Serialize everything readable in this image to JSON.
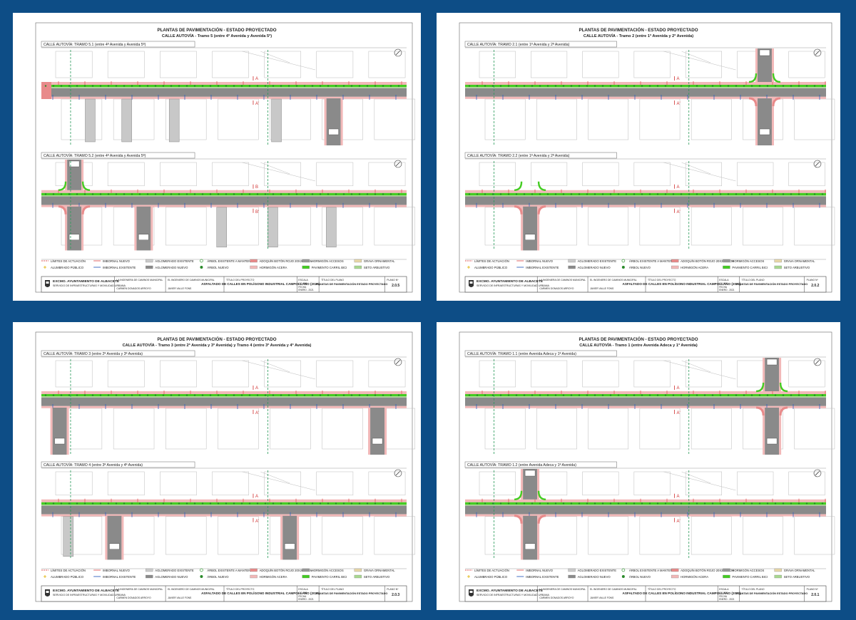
{
  "sheets": [
    {
      "title": "PLANTAS DE PAVIMENTACIÓN - ESTADO PROYECTADO",
      "subtitle": "CALLE AUTOVÍA - Tramo 5 (entre 4ª Avenida y Avenida 5ª)",
      "views": [
        {
          "label": "CALLE AUTOVÍA: TRAMO 5.1 (entre 4ª Avenida y Avenida 5ª)",
          "section": "A"
        },
        {
          "label": "CALLE AUTOVÍA: TRAMO 5.2 (entre 4ª Avenida y Avenida 5ª)",
          "section": "B"
        }
      ],
      "plan_title": "PLANTAS DE PAVIMENTACIÓN ESTADO PROYECTADO",
      "scale": "1/1.000",
      "plan_no": "2.0.5"
    },
    {
      "title": "PLANTAS DE PAVIMENTACIÓN - ESTADO PROYECTADO",
      "subtitle": "CALLE AUTOVÍA - Tramo 2 (entre 1ª Avenida y 2ª Avenida)",
      "views": [
        {
          "label": "CALLE AUTOVÍA: TRAMO 2.1 (entre 1ª Avenida y 2ª Avenida)",
          "section": "A"
        },
        {
          "label": "CALLE AUTOVÍA: TRAMO 2.2 (entre 1ª Avenida y 2ª Avenida)",
          "section": "A"
        }
      ],
      "plan_title": "PLANTAS DE PAVIMENTACIÓN ESTADO PROYECTADO",
      "scale": "1/1.000",
      "plan_no": "2.0.2"
    },
    {
      "title": "PLANTAS DE PAVIMENTACIÓN - ESTADO PROYECTADO",
      "subtitle": "CALLE AUTOVÍA - Tramo 3 (entre 2ª Avenida y 3ª Avenida) y Tramo 4 (entre 3ª Avenida y 4ª Avenida)",
      "views": [
        {
          "label": "CALLE AUTOVÍA: TRAMO 3 (entre 2ª Avenida y 3ª Avenida)",
          "section": "A"
        },
        {
          "label": "CALLE AUTOVÍA: TRAMO 4 (entre 3ª Avenida y 4ª Avenida)",
          "section": "A"
        }
      ],
      "plan_title": "PLANTAS DE PAVIMENTACIÓN ESTADO PROYECTADO",
      "scale": "1/1.000",
      "plan_no": "2.0.3"
    },
    {
      "title": "PLANTAS DE PAVIMENTACIÓN - ESTADO PROYECTADO",
      "subtitle": "CALLE AUTOVÍA - Tramo 1 (entre Avenida Adeca y 1ª Avenida)",
      "views": [
        {
          "label": "CALLE AUTOVÍA: TRAMO 1.1 (entre Avenida Adeca y 1ª Avenida)",
          "section": "A"
        },
        {
          "label": "CALLE AUTOVÍA: TRAMO 1.2 (entre Avenida Adeca y 1ª Avenida)",
          "section": "A"
        }
      ],
      "plan_title": "PLANTAS DE PAVIMENTACIÓN ESTADO PROYECTADO",
      "scale": "1/1.000",
      "plan_no": "2.0.1"
    }
  ],
  "legend": [
    {
      "label": "LÍMITES DE ACTUACIÓN",
      "color": "#e05a5a",
      "kind": "dash"
    },
    {
      "label": "IMBORNAL NUEVO",
      "color": "#e05a5a",
      "kind": "line"
    },
    {
      "label": "AGLOMERADO EXISTENTE",
      "color": "#cccccc",
      "kind": "box"
    },
    {
      "label": "ÁRBOL EXISTENTE A MANTENER",
      "color": "#3a9a3a",
      "kind": "ring"
    },
    {
      "label": "ADOQUÍN BOTÓN ROJO 20X20X6 CM",
      "color": "#e88a8a",
      "kind": "box"
    },
    {
      "label": "HORMIGÓN ACCESOS",
      "color": "#9a9a9a",
      "kind": "box"
    },
    {
      "label": "GRAVA ORNAMENTAL",
      "color": "#e8d8a8",
      "kind": "box"
    },
    {
      "label": "ALUMBRADO PÚBLICO",
      "color": "#e0b000",
      "kind": "star"
    },
    {
      "label": "IMBORNAL EXISTENTE",
      "color": "#3060c0",
      "kind": "line"
    },
    {
      "label": "AGLOMERADO NUEVO",
      "color": "#8a8a8a",
      "kind": "box"
    },
    {
      "label": "ÁRBOL NUEVO",
      "color": "#2a8a2a",
      "kind": "dot"
    },
    {
      "label": "HORMIGÓN ACERA",
      "color": "#f2b8b8",
      "kind": "box"
    },
    {
      "label": "PAVIMENTO CARRIL BICI",
      "color": "#44cc22",
      "kind": "box"
    },
    {
      "label": "SETO ARBUSTIVO",
      "color": "#a8d890",
      "kind": "box"
    }
  ],
  "titleblock": {
    "org": "EXCMO. AYUNTAMIENTO DE ALBACETE",
    "dept": "SERVICIO DE INFRAESTRUCTURAS Y MOVILIDAD URBANA",
    "role1": "LA INGENIERA DE CAMINOS MUNICIPAL",
    "name1": "CARMEN DONADOS ARROYO",
    "role2": "EL INGENIERO DE CAMINOS MUNICIPAL",
    "name2": "JAVIER VALLE FONS",
    "project_label": "TÍTULO DEL PROYECTO",
    "project": "ASFALTADO DE CALLES EN POLÍGONO INDUSTRIAL CAMPOLLANO (2020)",
    "scale_label": "ESCALA",
    "plan_label": "TÍTULO DEL PLANO",
    "planno_label": "PLANO Nº",
    "date_label": "FECHA",
    "date": "ENERO - 2021"
  }
}
